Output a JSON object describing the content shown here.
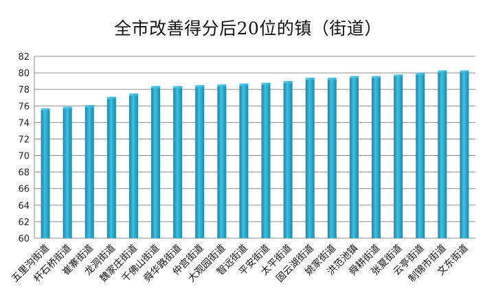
{
  "chart_data": {
    "type": "bar",
    "title": "全市改善得分后20位的镇（街道）",
    "xlabel": "",
    "ylabel": "",
    "ylim": [
      60,
      82
    ],
    "yticks": [
      60,
      62,
      64,
      66,
      68,
      70,
      72,
      74,
      76,
      78,
      80,
      82
    ],
    "grid": true,
    "legend": "none",
    "bar_color": "#2aa3c9",
    "categories": [
      "五里沟街道",
      "杆石桥街道",
      "崔寨街道",
      "龙洞街道",
      "魏家庄街道",
      "千佛山街道",
      "舜华路街道",
      "仲宫街道",
      "大观园街道",
      "智远街道",
      "平安街道",
      "太平街道",
      "固云湖街道",
      "姚家街道",
      "洪范池镇",
      "舜耕街道",
      "张夏街道",
      "云亭街道",
      "制锦市街道",
      "文东街道"
    ],
    "values": [
      75.7,
      75.9,
      76.1,
      77.1,
      77.5,
      78.4,
      78.4,
      78.5,
      78.6,
      78.7,
      78.8,
      79.0,
      79.4,
      79.4,
      79.6,
      79.6,
      79.8,
      80.0,
      80.3,
      80.3
    ]
  }
}
